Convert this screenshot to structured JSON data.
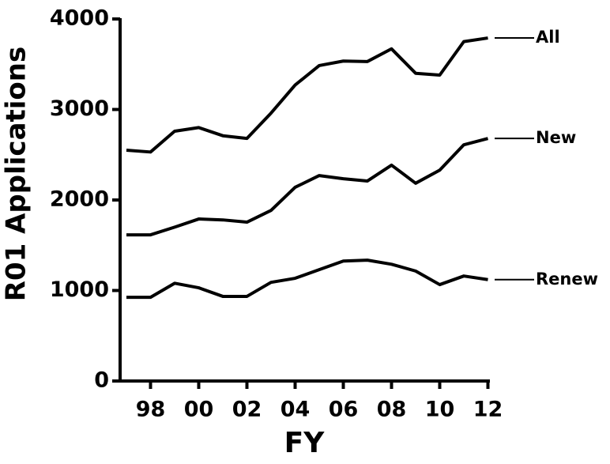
{
  "chart_data": {
    "type": "line",
    "xlabel": "FY",
    "ylabel": "R01 Applications",
    "categories": [
      null,
      "98",
      null,
      "00",
      null,
      "02",
      null,
      "04",
      null,
      "06",
      null,
      "08",
      null,
      "10",
      null,
      "12"
    ],
    "series": [
      {
        "name": "All",
        "color": "#000000",
        "values": [
          2550,
          2530,
          2760,
          2800,
          2710,
          2680,
          2960,
          3270,
          3485,
          3535,
          3530,
          3670,
          3400,
          3380,
          3750,
          3790
        ]
      },
      {
        "name": "New",
        "color": "#000000",
        "values": [
          1615,
          1615,
          1700,
          1790,
          1780,
          1755,
          1885,
          2140,
          2270,
          2235,
          2210,
          2385,
          2185,
          2330,
          2610,
          2680
        ]
      },
      {
        "name": "Renew",
        "color": "#000000",
        "values": [
          925,
          925,
          1080,
          1030,
          935,
          935,
          1090,
          1135,
          1230,
          1325,
          1335,
          1290,
          1215,
          1065,
          1160,
          1120
        ]
      }
    ],
    "ylim": [
      0,
      4000
    ],
    "yticks": [
      0,
      1000,
      2000,
      3000,
      4000
    ],
    "grid": false
  }
}
